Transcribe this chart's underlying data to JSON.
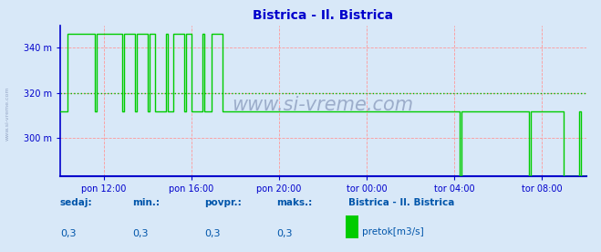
{
  "title": "Bistrica - Il. Bistrica",
  "title_color": "#0000cc",
  "bg_color": "#d8e8f8",
  "plot_bg_color": "#d8e8f8",
  "yticks": [
    300,
    320,
    340
  ],
  "ytick_labels": [
    "300 m",
    "320 m",
    "340 m"
  ],
  "ylim": [
    283,
    350
  ],
  "xlim_start": 0,
  "xlim_end": 288,
  "xtick_positions": [
    24,
    72,
    120,
    168,
    216,
    264
  ],
  "xtick_labels": [
    "pon 12:00",
    "pon 16:00",
    "pon 20:00",
    "tor 00:00",
    "tor 04:00",
    "tor 08:00"
  ],
  "grid_color": "#ff9999",
  "mean_line_value": 320,
  "mean_line_color": "#00bb00",
  "axis_color": "#0000cc",
  "line_color": "#00cc00",
  "watermark": "www.si-vreme.com",
  "watermark_color": "#8899bb",
  "legend_title": "Bistrica - Il. Bistrica",
  "legend_label": "pretok[m3/s]",
  "legend_color": "#00cc00",
  "bottom_labels": [
    "sedaj:",
    "min.:",
    "povpr.:",
    "maks.:"
  ],
  "bottom_values": [
    "0,3",
    "0,3",
    "0,3",
    "0,3"
  ],
  "bottom_color": "#0055aa",
  "figwidth": 6.59,
  "figheight": 2.76,
  "dpi": 100,
  "series_x": [
    0,
    4,
    4,
    19,
    19,
    20,
    20,
    34,
    34,
    35,
    35,
    41,
    41,
    42,
    42,
    48,
    48,
    49,
    49,
    52,
    52,
    58,
    58,
    59,
    59,
    62,
    62,
    68,
    68,
    69,
    69,
    72,
    72,
    78,
    78,
    79,
    79,
    83,
    83,
    89,
    89,
    90,
    90,
    95,
    95,
    119,
    119,
    120,
    120,
    219,
    219,
    220,
    220,
    257,
    257,
    258,
    258,
    276,
    276,
    277,
    277,
    284,
    284,
    285,
    285,
    288
  ],
  "series_y": [
    312,
    312,
    346,
    346,
    312,
    312,
    346,
    346,
    312,
    312,
    346,
    346,
    312,
    312,
    346,
    346,
    312,
    312,
    346,
    346,
    312,
    312,
    346,
    346,
    312,
    312,
    346,
    346,
    312,
    312,
    346,
    346,
    312,
    312,
    346,
    346,
    312,
    312,
    346,
    346,
    312,
    312,
    312,
    312,
    312,
    312,
    312,
    312,
    312,
    312,
    283,
    283,
    312,
    312,
    283,
    283,
    312,
    312,
    283,
    283,
    283,
    283,
    312,
    312,
    283,
    283
  ]
}
